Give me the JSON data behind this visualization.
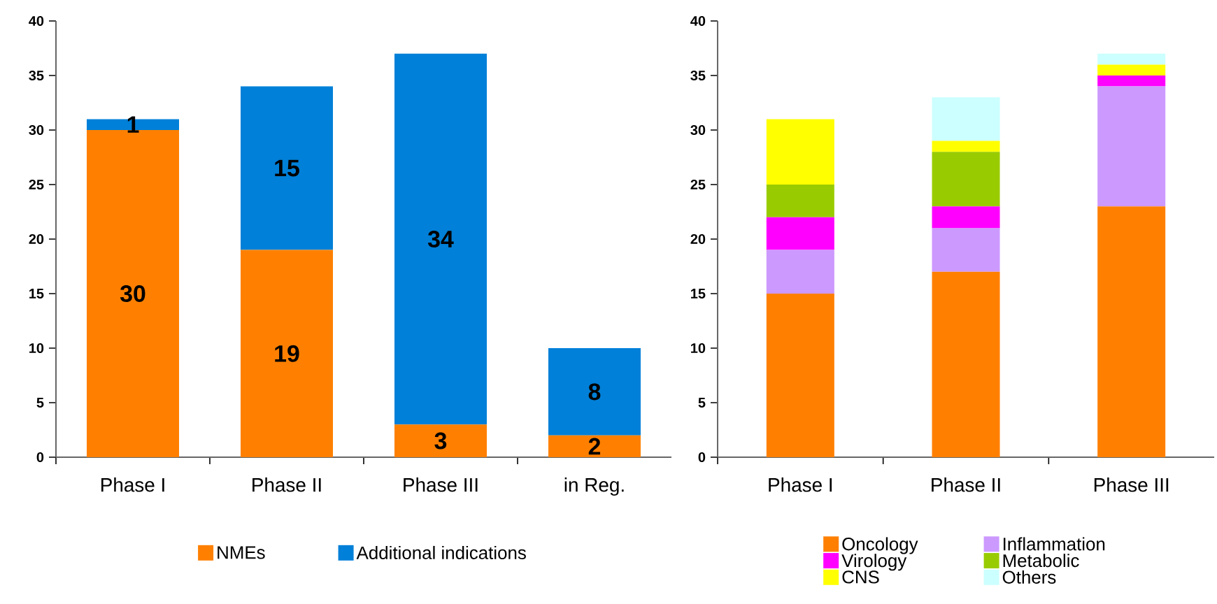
{
  "chart_data": [
    {
      "type": "bar",
      "stacked": true,
      "categories": [
        "Phase I",
        "Phase II",
        "Phase III",
        "in Reg."
      ],
      "series": [
        {
          "name": "NMEs",
          "color": "#ff8000",
          "values": [
            30,
            19,
            3,
            2
          ]
        },
        {
          "name": "Additional indications",
          "color": "#0080d8",
          "values": [
            1,
            15,
            34,
            8
          ]
        }
      ],
      "ylim": [
        0,
        40
      ],
      "yticks": [
        0,
        5,
        10,
        15,
        20,
        25,
        30,
        35,
        40
      ],
      "data_labels": true,
      "legend": "bottom"
    },
    {
      "type": "bar",
      "stacked": true,
      "categories": [
        "Phase I",
        "Phase II",
        "Phase III"
      ],
      "series": [
        {
          "name": "Oncology",
          "color": "#ff8000",
          "values": [
            15,
            17,
            23
          ]
        },
        {
          "name": "Inflammation",
          "color": "#cc99ff",
          "values": [
            4,
            4,
            11
          ]
        },
        {
          "name": "Virology",
          "color": "#ff00ff",
          "values": [
            3,
            2,
            1
          ]
        },
        {
          "name": "Metabolic",
          "color": "#99cc00",
          "values": [
            3,
            5,
            0
          ]
        },
        {
          "name": "CNS",
          "color": "#ffff00",
          "values": [
            6,
            1,
            1
          ]
        },
        {
          "name": "Others",
          "color": "#ccffff",
          "values": [
            0,
            4,
            1
          ]
        }
      ],
      "ylim": [
        0,
        40
      ],
      "yticks": [
        0,
        5,
        10,
        15,
        20,
        25,
        30,
        35,
        40
      ],
      "legend": "bottom"
    }
  ]
}
